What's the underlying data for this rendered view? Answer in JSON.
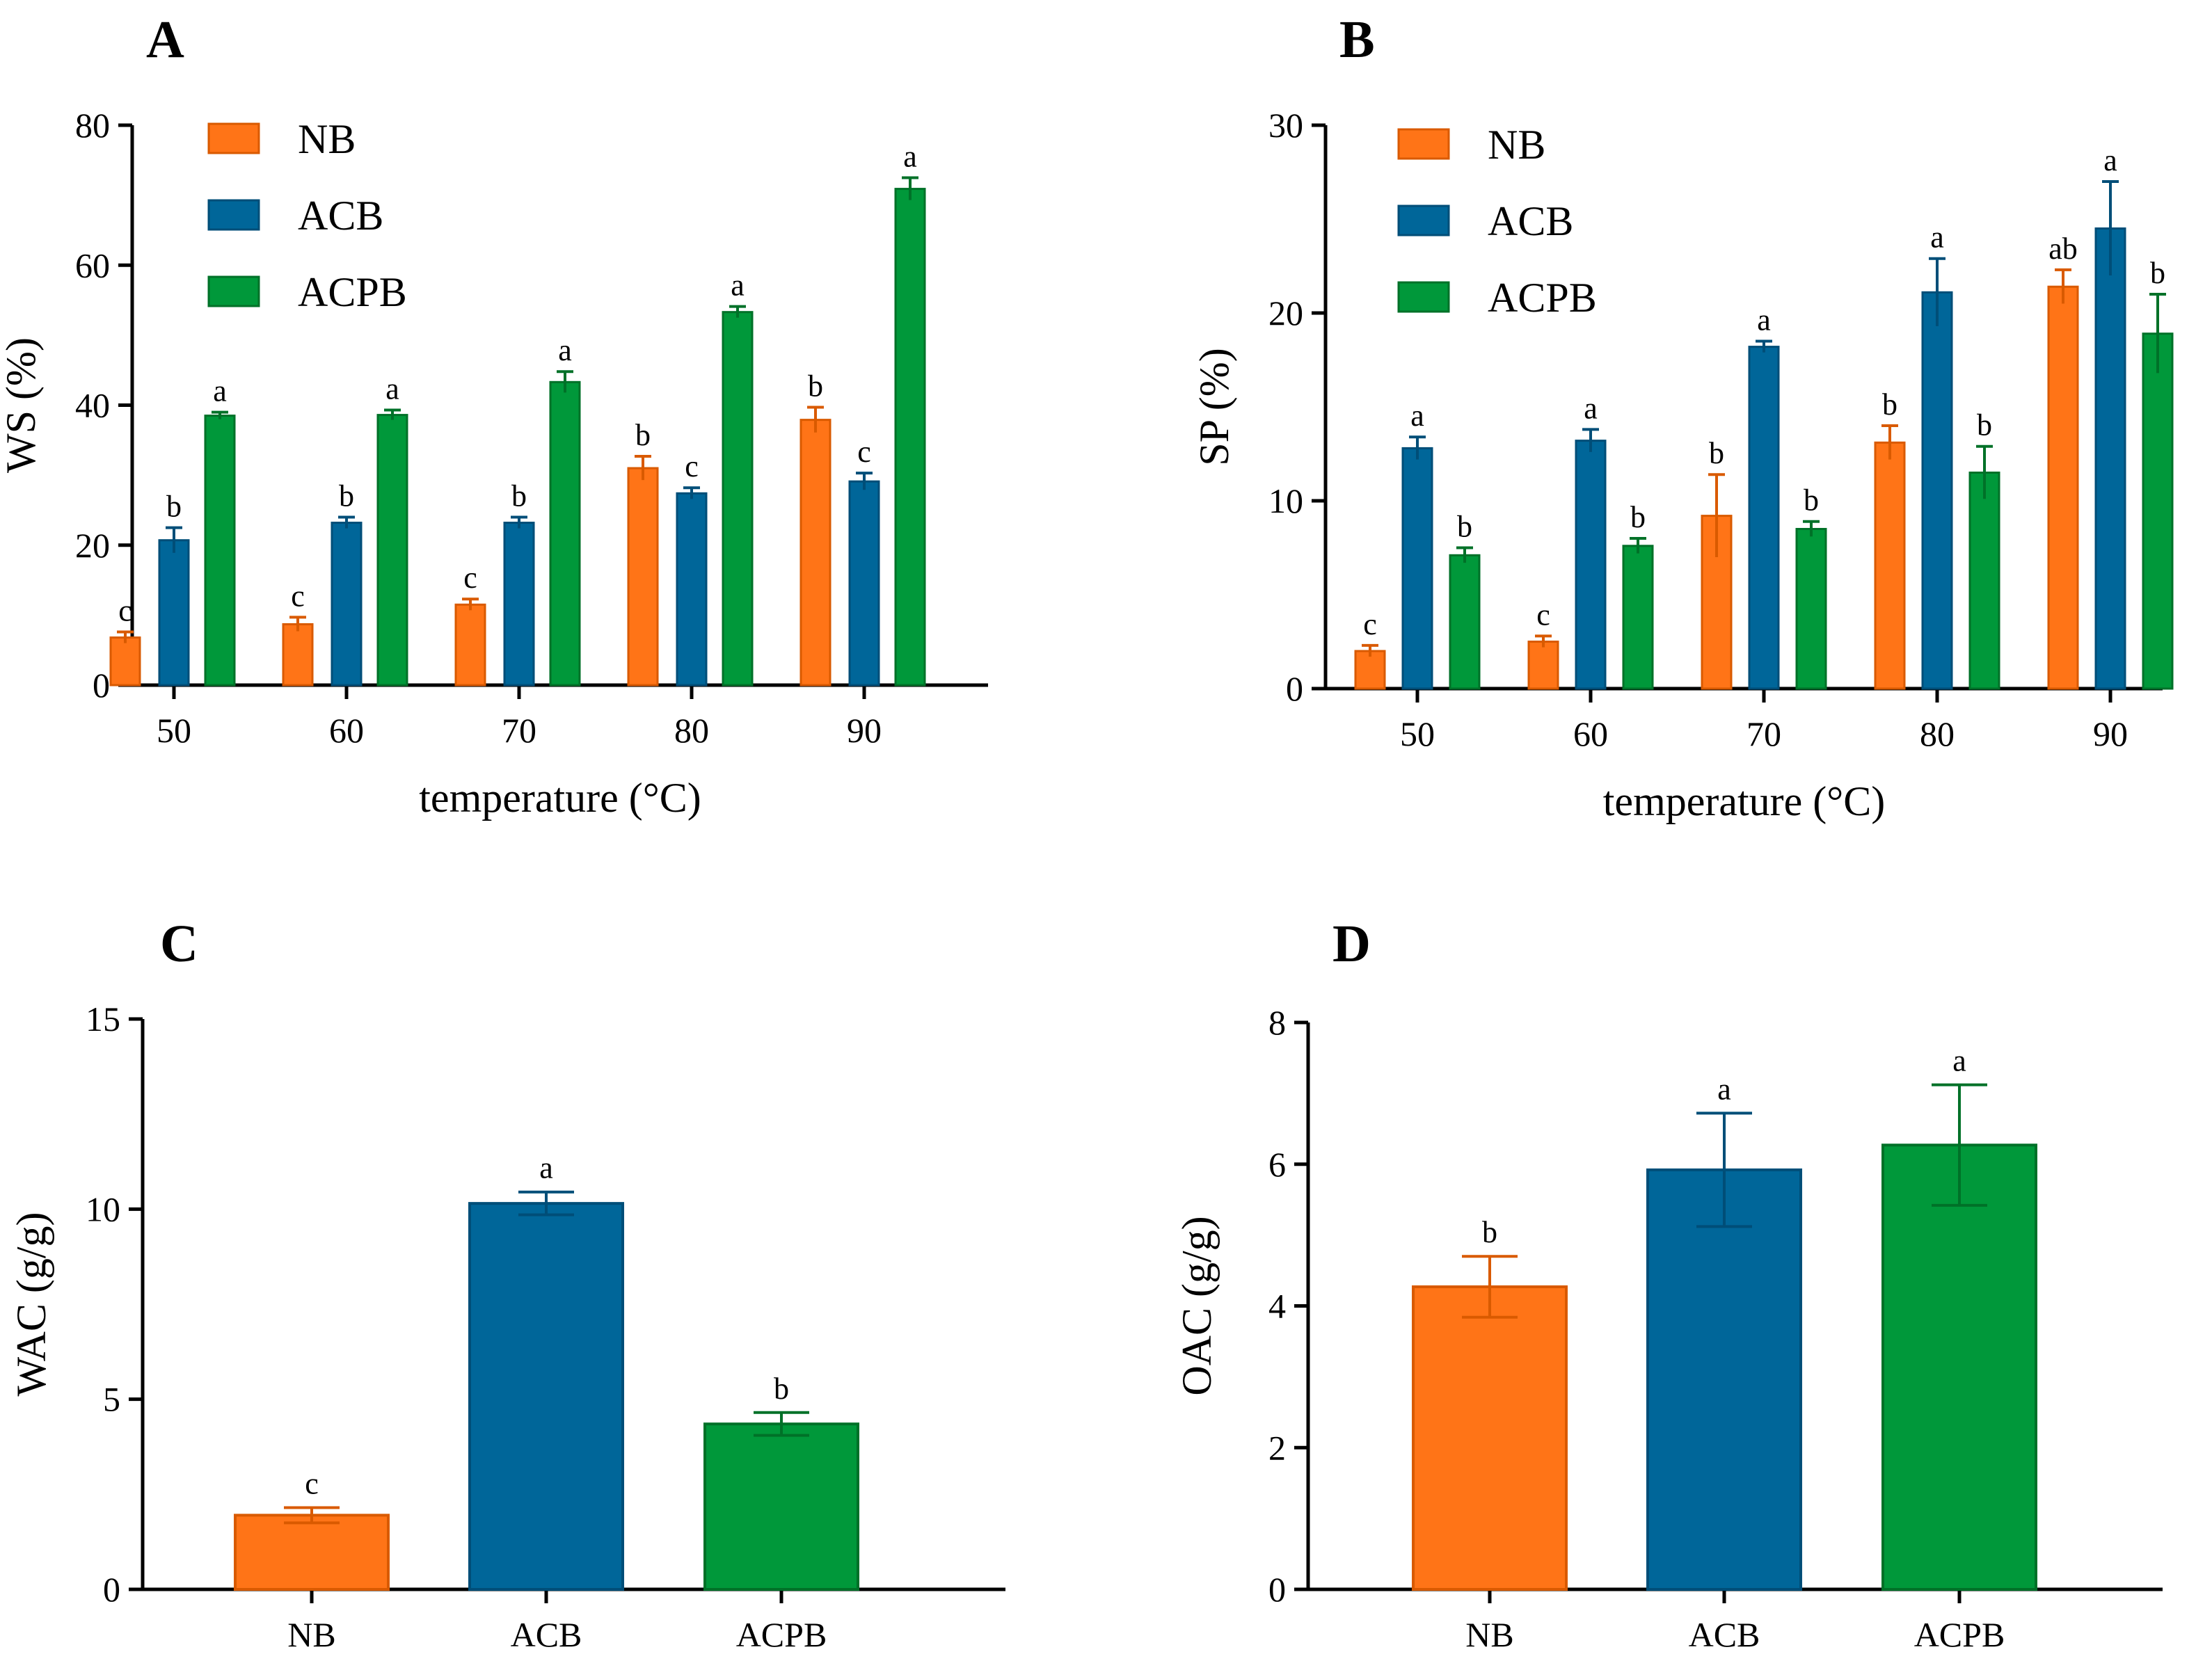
{
  "colors": {
    "NB": "#FF7417",
    "ACB": "#006699",
    "ACPB": "#00983A",
    "NB_edge": "#D95A00",
    "ACB_edge": "#004E78",
    "ACPB_edge": "#007128"
  },
  "chart_data": [
    {
      "id": "A",
      "panel_label": "A",
      "type": "bar",
      "xlabel": "temperature (°C)",
      "ylabel": "WS (%)",
      "ylim": [
        0,
        80
      ],
      "yticks": [
        0,
        20,
        40,
        60,
        80
      ],
      "categories": [
        "50",
        "60",
        "70",
        "80",
        "90"
      ],
      "legend": [
        "NB",
        "ACB",
        "ACPB"
      ],
      "legend_position": "top-left",
      "series": [
        {
          "name": "NB",
          "values": [
            6.8,
            8.7,
            11.5,
            31.0,
            37.9
          ],
          "errors": [
            0.8,
            1.0,
            0.8,
            1.7,
            1.8
          ],
          "letters": [
            "c",
            "c",
            "c",
            "b",
            "b"
          ]
        },
        {
          "name": "ACB",
          "values": [
            20.7,
            23.2,
            23.2,
            27.4,
            29.1
          ],
          "errors": [
            1.8,
            0.8,
            0.8,
            0.8,
            1.2
          ],
          "letters": [
            "b",
            "b",
            "b",
            "c",
            "c"
          ]
        },
        {
          "name": "ACPB",
          "values": [
            38.5,
            38.6,
            43.3,
            53.3,
            70.9
          ],
          "errors": [
            0.5,
            0.7,
            1.5,
            0.8,
            1.6
          ],
          "letters": [
            "a",
            "a",
            "a",
            "a",
            "a"
          ]
        }
      ]
    },
    {
      "id": "B",
      "panel_label": "B",
      "type": "bar",
      "xlabel": "temperature (°C)",
      "ylabel": "SP (%)",
      "ylim": [
        0,
        30
      ],
      "yticks": [
        0,
        10,
        20,
        30
      ],
      "categories": [
        "50",
        "60",
        "70",
        "80",
        "90"
      ],
      "legend": [
        "NB",
        "ACB",
        "ACPB"
      ],
      "legend_position": "top-left",
      "series": [
        {
          "name": "NB",
          "values": [
            2.0,
            2.5,
            9.2,
            13.1,
            21.4
          ],
          "errors": [
            0.3,
            0.3,
            2.2,
            0.9,
            0.9
          ],
          "letters": [
            "c",
            "c",
            "b",
            "b",
            "ab"
          ]
        },
        {
          "name": "ACB",
          "values": [
            12.8,
            13.2,
            18.2,
            21.1,
            24.5
          ],
          "errors": [
            0.6,
            0.6,
            0.3,
            1.8,
            2.5
          ],
          "letters": [
            "a",
            "a",
            "a",
            "a",
            "a"
          ]
        },
        {
          "name": "ACPB",
          "values": [
            7.1,
            7.6,
            8.5,
            11.5,
            18.9
          ],
          "errors": [
            0.4,
            0.4,
            0.4,
            1.4,
            2.1
          ],
          "letters": [
            "b",
            "b",
            "b",
            "b",
            "b"
          ]
        }
      ]
    },
    {
      "id": "C",
      "panel_label": "C",
      "type": "bar",
      "xlabel": "",
      "ylabel": "WAC (g/g)",
      "ylim": [
        0,
        15
      ],
      "yticks": [
        0,
        5,
        10,
        15
      ],
      "categories": [
        "NB",
        "ACB",
        "ACPB"
      ],
      "values": [
        1.95,
        10.15,
        4.35
      ],
      "errors": [
        0.2,
        0.3,
        0.3
      ],
      "letters": [
        "c",
        "a",
        "b"
      ],
      "bar_colors": [
        "NB",
        "ACB",
        "ACPB"
      ]
    },
    {
      "id": "D",
      "panel_label": "D",
      "type": "bar",
      "xlabel": "",
      "ylabel": "OAC (g/g)",
      "ylim": [
        0,
        8
      ],
      "yticks": [
        0,
        2,
        4,
        6,
        8
      ],
      "categories": [
        "NB",
        "ACB",
        "ACPB"
      ],
      "values": [
        4.27,
        5.92,
        6.27
      ],
      "errors": [
        0.43,
        0.8,
        0.85
      ],
      "letters": [
        "b",
        "a",
        "a"
      ],
      "bar_colors": [
        "NB",
        "ACB",
        "ACPB"
      ]
    }
  ]
}
